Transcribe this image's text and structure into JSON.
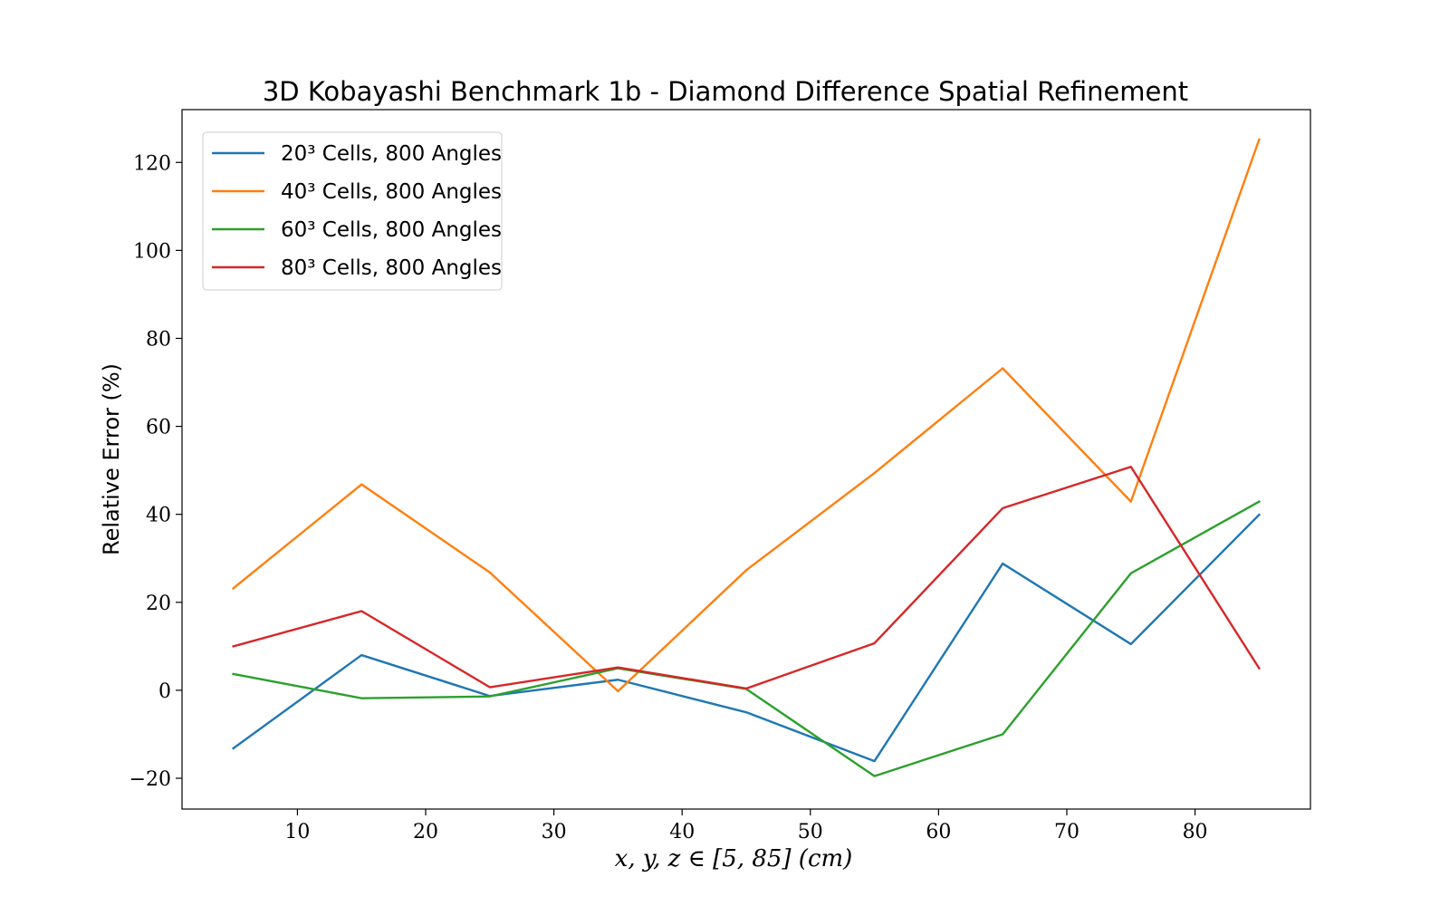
{
  "chart_data": {
    "type": "line",
    "title": "3D Kobayashi Benchmark 1b - Diamond Difference Spatial Refinement",
    "xlabel": "x, y, z ∈ [5, 85] (cm)",
    "ylabel": "Relative Error (%)",
    "x": [
      5,
      15,
      25,
      35,
      45,
      55,
      65,
      75,
      85
    ],
    "xlim": [
      1,
      89
    ],
    "ylim": [
      -27,
      132
    ],
    "xticks": [
      10,
      20,
      30,
      40,
      50,
      60,
      70,
      80
    ],
    "yticks": [
      -20,
      0,
      20,
      40,
      60,
      80,
      100,
      120
    ],
    "xtick_labels": [
      "10",
      "20",
      "30",
      "40",
      "50",
      "60",
      "70",
      "80"
    ],
    "ytick_labels": [
      "−20",
      "0",
      "20",
      "40",
      "60",
      "80",
      "100",
      "120"
    ],
    "grid": false,
    "legend_position": "top-left",
    "series": [
      {
        "name": "20³ Cells, 800 Angles",
        "color": "#1f77b4",
        "values": [
          -13.2,
          8.0,
          -1.3,
          2.4,
          -5.0,
          -16.1,
          28.8,
          10.5,
          39.9
        ]
      },
      {
        "name": "40³ Cells, 800 Angles",
        "color": "#ff7f0e",
        "values": [
          23.2,
          46.8,
          26.8,
          -0.2,
          27.3,
          49.4,
          73.2,
          42.9,
          125.2
        ]
      },
      {
        "name": "60³ Cells, 800 Angles",
        "color": "#2ca02c",
        "values": [
          3.7,
          -1.8,
          -1.4,
          5.0,
          0.3,
          -19.5,
          -10.0,
          26.6,
          42.9
        ]
      },
      {
        "name": "80³ Cells, 800 Angles",
        "color": "#d62728",
        "values": [
          10.0,
          18.0,
          0.7,
          5.2,
          0.4,
          10.7,
          41.4,
          50.8,
          5.0
        ]
      }
    ]
  }
}
